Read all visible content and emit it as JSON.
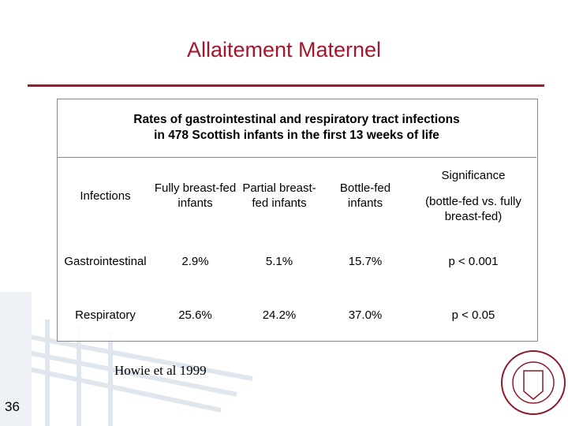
{
  "header": {
    "title": "Allaitement Maternel"
  },
  "table": {
    "caption": [
      "Rates of gastrointestinal and respiratory tract infections",
      "in 478 Scottish infants in the first 13 weeks of life"
    ],
    "columns": [
      "Infections",
      "Fully breast-fed infants",
      "Partial breast-fed infants",
      "Bottle-fed infants",
      [
        "Significance",
        "(bottle-fed vs. fully breast-fed)"
      ]
    ],
    "rows": [
      [
        "Gastrointestinal",
        "2.9%",
        "5.1%",
        "15.7%",
        "p < 0.001"
      ],
      [
        "Respiratory",
        "25.6%",
        "24.2%",
        "37.0%",
        "p < 0.05"
      ]
    ]
  },
  "footer": {
    "citation": "Howie et al 1999",
    "page_number": "36"
  }
}
